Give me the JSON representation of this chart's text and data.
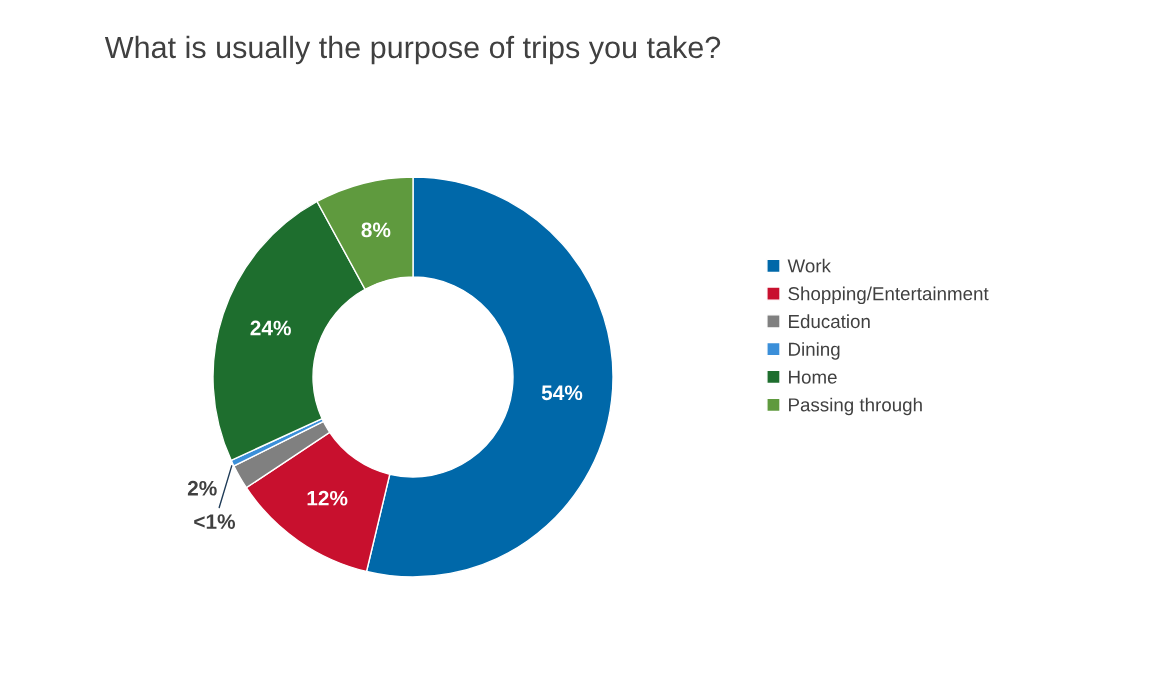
{
  "chart_data": {
    "type": "donut",
    "title": "What is usually the purpose of trips you take?",
    "categories": [
      "Work",
      "Shopping/Entertainment",
      "Education",
      "Dining",
      "Home",
      "Passing through"
    ],
    "values": [
      54,
      12,
      2,
      0.5,
      24,
      8
    ],
    "value_labels": [
      "54%",
      "12%",
      "2%",
      "<1%",
      "24%",
      "8%"
    ],
    "colors": [
      "#0068a9",
      "#c8102e",
      "#808080",
      "#3b8fd9",
      "#1e6e2e",
      "#5f9a3e"
    ],
    "legend": "right"
  }
}
